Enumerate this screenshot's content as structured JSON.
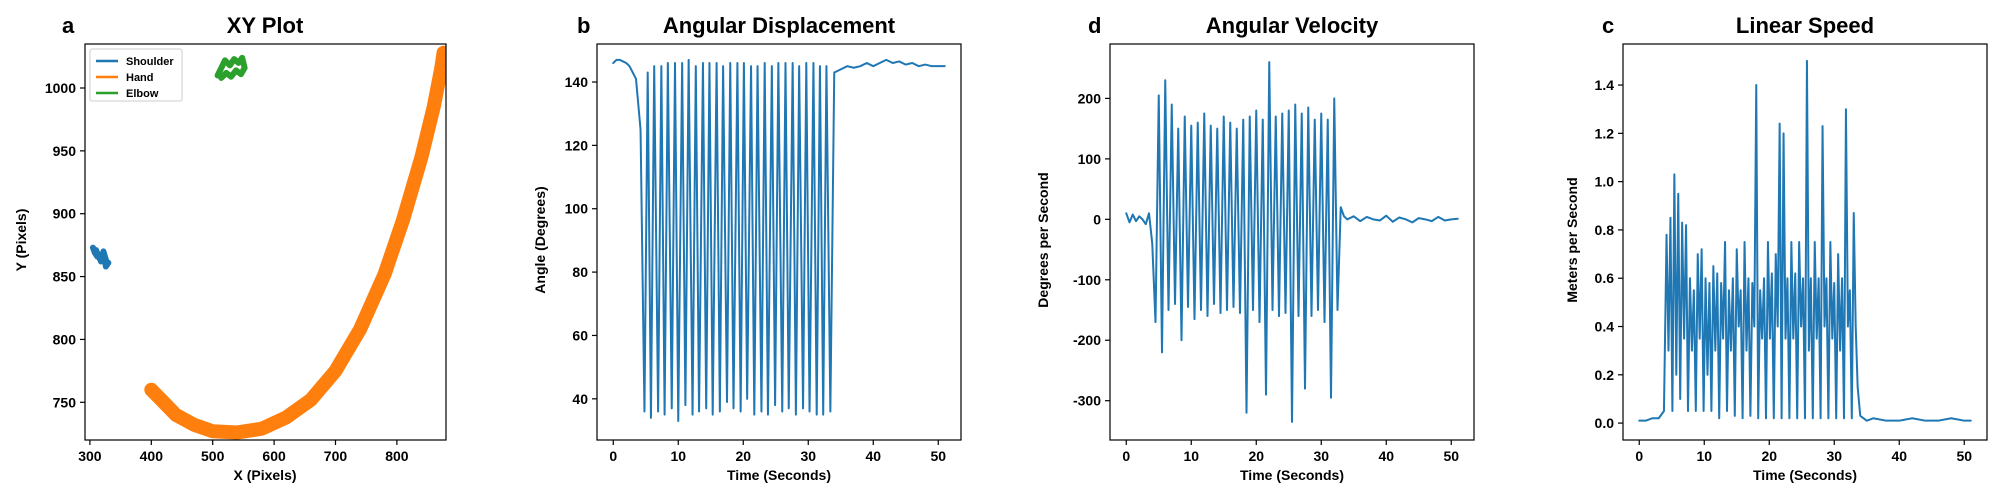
{
  "figure": {
    "colors": {
      "blue": "#1f77b4",
      "orange": "#ff7f0e",
      "green": "#2ca02c"
    }
  },
  "chart_data": [
    {
      "panel": "a",
      "type": "line",
      "title": "XY Plot",
      "xlabel": "X (Pixels)",
      "ylabel": "Y (Pixels)",
      "xlim": [
        292,
        880
      ],
      "ylim": [
        720,
        1035
      ],
      "xticks": [
        300,
        400,
        500,
        600,
        700,
        800
      ],
      "yticks": [
        750,
        800,
        850,
        900,
        950,
        1000
      ],
      "legend": {
        "placement": "top-left",
        "entries": [
          "Shoulder",
          "Hand",
          "Elbow"
        ]
      },
      "series": [
        {
          "name": "Shoulder",
          "color": "#1f77b4",
          "x": [
            305,
            308,
            312,
            310,
            316,
            320,
            318,
            324,
            328,
            322,
            326,
            330
          ],
          "y": [
            873,
            869,
            866,
            871,
            864,
            868,
            862,
            866,
            860,
            870,
            858,
            861
          ]
        },
        {
          "name": "Hand",
          "color": "#ff7f0e",
          "x": [
            400,
            420,
            440,
            470,
            500,
            540,
            580,
            620,
            660,
            700,
            740,
            780,
            810,
            840,
            860,
            872,
            876
          ],
          "y": [
            760,
            750,
            740,
            732,
            727,
            726,
            729,
            738,
            752,
            775,
            808,
            852,
            895,
            945,
            985,
            1015,
            1028
          ]
        },
        {
          "name": "Elbow",
          "color": "#2ca02c",
          "x": [
            508,
            514,
            520,
            528,
            535,
            542,
            548,
            552,
            546,
            538,
            530,
            522,
            514
          ],
          "y": [
            1010,
            1016,
            1022,
            1018,
            1023,
            1020,
            1024,
            1016,
            1011,
            1014,
            1009,
            1012,
            1008
          ]
        }
      ]
    },
    {
      "panel": "b",
      "type": "line",
      "title": "Angular Displacement",
      "xlabel": "Time (Seconds)",
      "ylabel": "Angle (Degrees)",
      "xlim": [
        -2.5,
        53.5
      ],
      "ylim": [
        27,
        152
      ],
      "xticks": [
        0,
        10,
        20,
        30,
        40,
        50
      ],
      "yticks": [
        40,
        60,
        80,
        100,
        120,
        140
      ],
      "series": [
        {
          "name": "",
          "color": "#1f77b4",
          "x": [
            0,
            0.5,
            1,
            1.5,
            2,
            2.5,
            3,
            3.5,
            4.2,
            4.8,
            5.3,
            5.8,
            6.3,
            6.9,
            7.4,
            7.9,
            8.4,
            9.0,
            9.5,
            10.0,
            10.6,
            11.1,
            11.6,
            12.2,
            12.7,
            13.2,
            13.8,
            14.3,
            14.8,
            15.3,
            15.9,
            16.4,
            16.9,
            17.5,
            18.0,
            18.5,
            19.1,
            19.6,
            20.1,
            20.6,
            21.2,
            21.7,
            22.2,
            22.8,
            23.3,
            23.8,
            24.4,
            24.9,
            25.4,
            26.0,
            26.5,
            27.0,
            27.6,
            28.1,
            28.6,
            29.2,
            29.7,
            30.2,
            30.8,
            31.3,
            31.8,
            32.3,
            32.8,
            33.4,
            34,
            35,
            36,
            37,
            38,
            39,
            40,
            41,
            42,
            43,
            44,
            45,
            46,
            47,
            48,
            49,
            50,
            51
          ],
          "y": [
            146,
            147,
            147,
            146.5,
            146,
            145,
            143,
            141,
            125,
            36,
            143,
            34,
            145,
            36,
            145,
            35,
            146,
            37,
            146,
            33,
            146,
            38,
            147,
            35,
            145,
            36,
            146,
            37,
            146,
            35,
            146,
            36,
            145,
            39,
            146,
            37,
            146,
            36,
            146,
            40,
            145,
            35,
            145,
            36,
            146,
            35,
            145,
            38,
            146,
            36,
            146,
            37,
            146,
            35,
            145,
            37,
            146,
            36,
            146,
            35,
            145,
            35,
            145,
            36,
            143,
            144,
            145,
            144.5,
            145,
            146,
            145,
            146,
            147,
            146,
            146.5,
            145.5,
            146,
            145,
            145.5,
            145,
            145,
            145
          ]
        }
      ]
    },
    {
      "panel": "d",
      "type": "line",
      "title": "Angular Velocity",
      "xlabel": "Time (Seconds)",
      "ylabel": "Degrees per Second",
      "xlim": [
        -2.5,
        53.5
      ],
      "ylim": [
        -365,
        290
      ],
      "xticks": [
        0,
        10,
        20,
        30,
        40,
        50
      ],
      "yticks": [
        -300,
        -200,
        -100,
        0,
        100,
        200
      ],
      "series": [
        {
          "name": "",
          "color": "#1f77b4",
          "x": [
            0,
            0.5,
            1,
            1.5,
            2,
            2.5,
            3,
            3.5,
            4.0,
            4.5,
            5.0,
            5.5,
            6.0,
            6.5,
            7.0,
            7.5,
            8.0,
            8.5,
            9.0,
            9.5,
            10.0,
            10.5,
            11.0,
            11.5,
            12.0,
            12.5,
            13.0,
            13.5,
            14.0,
            14.5,
            15.0,
            15.5,
            16.0,
            16.5,
            17.0,
            17.5,
            18.0,
            18.5,
            19.0,
            19.5,
            20.0,
            20.5,
            21.0,
            21.5,
            22.0,
            22.5,
            23.0,
            23.5,
            24.0,
            24.5,
            25.0,
            25.5,
            26.0,
            26.5,
            27.0,
            27.5,
            28.0,
            28.5,
            29.0,
            29.5,
            30.0,
            30.5,
            31.0,
            31.5,
            32.0,
            32.5,
            33.0,
            33.5,
            34,
            35,
            36,
            37,
            38,
            39,
            40,
            41,
            42,
            43,
            44,
            45,
            46,
            47,
            48,
            49,
            50,
            51
          ],
          "y": [
            10,
            -5,
            8,
            -3,
            5,
            0,
            -8,
            10,
            -40,
            -170,
            205,
            -220,
            230,
            -150,
            190,
            -140,
            150,
            -200,
            170,
            -145,
            155,
            -165,
            160,
            -150,
            175,
            -160,
            155,
            -140,
            150,
            -155,
            170,
            -150,
            160,
            -145,
            150,
            -155,
            165,
            -320,
            170,
            -150,
            180,
            -170,
            165,
            -290,
            260,
            -150,
            170,
            -160,
            175,
            -155,
            180,
            -335,
            190,
            -160,
            175,
            -280,
            185,
            -160,
            165,
            -150,
            175,
            -170,
            165,
            -295,
            200,
            -150,
            20,
            5,
            0,
            5,
            -3,
            4,
            0,
            -2,
            6,
            -4,
            3,
            0,
            -5,
            2,
            0,
            -3,
            4,
            -2,
            0,
            1
          ]
        }
      ]
    },
    {
      "panel": "c",
      "type": "line",
      "title": "Linear Speed",
      "xlabel": "Time (Seconds)",
      "ylabel": "Meters per Second",
      "xlim": [
        -2.5,
        53.5
      ],
      "ylim": [
        -0.07,
        1.57
      ],
      "xticks": [
        0,
        10,
        20,
        30,
        40,
        50
      ],
      "yticks": [
        0.0,
        0.2,
        0.4,
        0.6,
        0.8,
        1.0,
        1.2,
        1.4
      ],
      "series": [
        {
          "name": "",
          "color": "#1f77b4",
          "x": [
            0,
            1,
            2,
            3,
            3.8,
            4.2,
            4.5,
            4.8,
            5.1,
            5.4,
            5.7,
            6.0,
            6.3,
            6.6,
            6.9,
            7.2,
            7.5,
            7.8,
            8.1,
            8.4,
            8.7,
            9.0,
            9.3,
            9.6,
            9.9,
            10.2,
            10.5,
            10.8,
            11.1,
            11.4,
            11.7,
            12.0,
            12.3,
            12.6,
            12.9,
            13.2,
            13.5,
            13.8,
            14.1,
            14.4,
            14.7,
            15.0,
            15.3,
            15.6,
            15.9,
            16.2,
            16.5,
            16.8,
            17.1,
            17.4,
            17.7,
            18.0,
            18.3,
            18.6,
            18.9,
            19.2,
            19.5,
            19.8,
            20.1,
            20.4,
            20.7,
            21.0,
            21.3,
            21.6,
            21.9,
            22.2,
            22.5,
            22.8,
            23.1,
            23.4,
            23.7,
            24.0,
            24.3,
            24.6,
            24.9,
            25.2,
            25.5,
            25.8,
            26.1,
            26.4,
            26.7,
            27.0,
            27.3,
            27.6,
            27.9,
            28.2,
            28.5,
            28.8,
            29.1,
            29.4,
            29.7,
            30.0,
            30.3,
            30.6,
            30.9,
            31.2,
            31.5,
            31.8,
            32.1,
            32.4,
            32.7,
            33.0,
            33.3,
            33.6,
            34,
            35,
            36,
            38,
            40,
            42,
            44,
            46,
            48,
            50,
            51
          ],
          "y": [
            0.01,
            0.01,
            0.02,
            0.02,
            0.05,
            0.78,
            0.3,
            0.85,
            0.05,
            1.03,
            0.2,
            0.95,
            0.1,
            0.83,
            0.35,
            0.82,
            0.05,
            0.6,
            0.3,
            0.55,
            0.05,
            0.7,
            0.35,
            0.72,
            0.05,
            0.6,
            0.2,
            0.58,
            0.05,
            0.65,
            0.3,
            0.62,
            0.02,
            0.58,
            0.35,
            0.75,
            0.05,
            0.55,
            0.3,
            0.6,
            0.03,
            0.72,
            0.4,
            0.55,
            0.02,
            0.75,
            0.3,
            0.6,
            0.03,
            0.58,
            0.4,
            1.4,
            0.02,
            0.55,
            0.35,
            0.6,
            0.02,
            0.75,
            0.35,
            0.62,
            0.02,
            0.7,
            0.4,
            1.24,
            0.02,
            1.2,
            0.35,
            0.6,
            0.02,
            0.75,
            0.35,
            0.62,
            0.02,
            0.75,
            0.4,
            0.6,
            0.02,
            1.5,
            0.3,
            0.6,
            0.02,
            0.75,
            0.35,
            0.6,
            0.02,
            1.23,
            0.4,
            0.6,
            0.02,
            0.75,
            0.35,
            0.58,
            0.02,
            0.7,
            0.3,
            0.6,
            0.02,
            1.3,
            0.4,
            0.55,
            0.02,
            0.87,
            0.4,
            0.15,
            0.03,
            0.01,
            0.02,
            0.01,
            0.01,
            0.02,
            0.01,
            0.01,
            0.02,
            0.01,
            0.01
          ]
        }
      ]
    }
  ]
}
